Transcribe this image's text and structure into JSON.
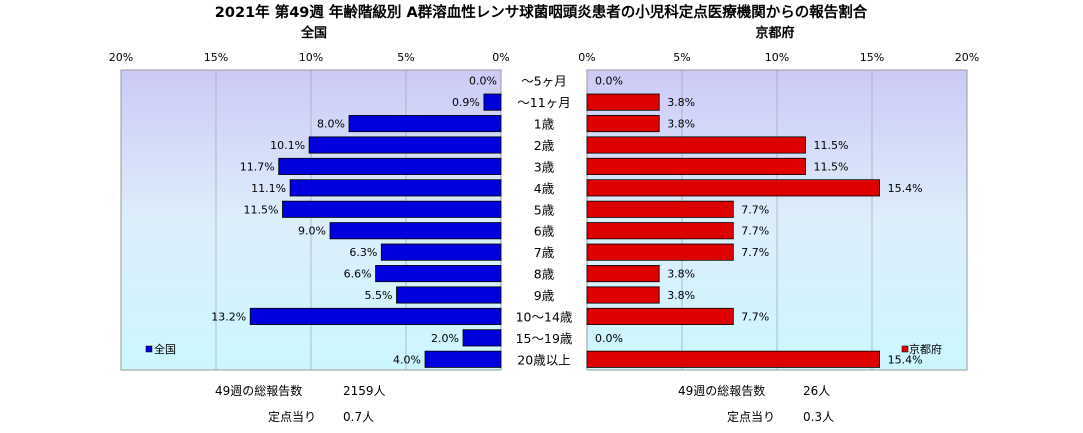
{
  "title": "2021年 第49週 年齢階級別 A群溶血性レンサ球菌咽頭炎患者の小児科定点医療機関からの報告割合",
  "chart_data": [
    {
      "type": "bar",
      "orientation": "horizontal",
      "title": "全国",
      "legend": "全国",
      "legend_placement": "bottom-left",
      "color": "#0000DD",
      "xlim": [
        0,
        20
      ],
      "ticks": [
        "20%",
        "15%",
        "10%",
        "5%",
        "0%"
      ],
      "categories": [
        "～5ヶ月",
        "～11ヶ月",
        "1歳",
        "2歳",
        "3歳",
        "4歳",
        "5歳",
        "6歳",
        "7歳",
        "8歳",
        "9歳",
        "10～14歳",
        "15～19歳",
        "20歳以上"
      ],
      "values": [
        0.0,
        0.9,
        8.0,
        10.1,
        11.7,
        11.1,
        11.5,
        9.0,
        6.3,
        6.6,
        5.5,
        13.2,
        2.0,
        4.0
      ],
      "labels": [
        "0.0%",
        "0.9%",
        "8.0%",
        "10.1%",
        "11.7%",
        "11.1%",
        "11.5%",
        "9.0%",
        "6.3%",
        "6.6%",
        "5.5%",
        "13.2%",
        "2.0%",
        "4.0%"
      ]
    },
    {
      "type": "bar",
      "orientation": "horizontal",
      "title": "京都府",
      "legend": "京都府",
      "legend_placement": "bottom-right",
      "color": "#DD0000",
      "xlim": [
        0,
        20
      ],
      "ticks": [
        "0%",
        "5%",
        "10%",
        "15%",
        "20%"
      ],
      "categories": [
        "～5ヶ月",
        "～11ヶ月",
        "1歳",
        "2歳",
        "3歳",
        "4歳",
        "5歳",
        "6歳",
        "7歳",
        "8歳",
        "9歳",
        "10～14歳",
        "15～19歳",
        "20歳以上"
      ],
      "values": [
        0.0,
        3.8,
        3.8,
        11.5,
        11.5,
        15.4,
        7.7,
        7.7,
        7.7,
        3.8,
        3.8,
        7.7,
        0.0,
        15.4
      ],
      "labels": [
        "0.0%",
        "3.8%",
        "3.8%",
        "11.5%",
        "11.5%",
        "15.4%",
        "7.7%",
        "7.7%",
        "7.7%",
        "3.8%",
        "3.8%",
        "7.7%",
        "0.0%",
        "15.4%"
      ]
    }
  ],
  "footer": {
    "national_total_label": "49週の総報告数",
    "national_total_value": "2159人",
    "national_per_label": "定点当り",
    "national_per_value": "0.7人",
    "kyoto_total_label": "49週の総報告数",
    "kyoto_total_value": "26人",
    "kyoto_per_label": "定点当り",
    "kyoto_per_value": "0.3人"
  }
}
